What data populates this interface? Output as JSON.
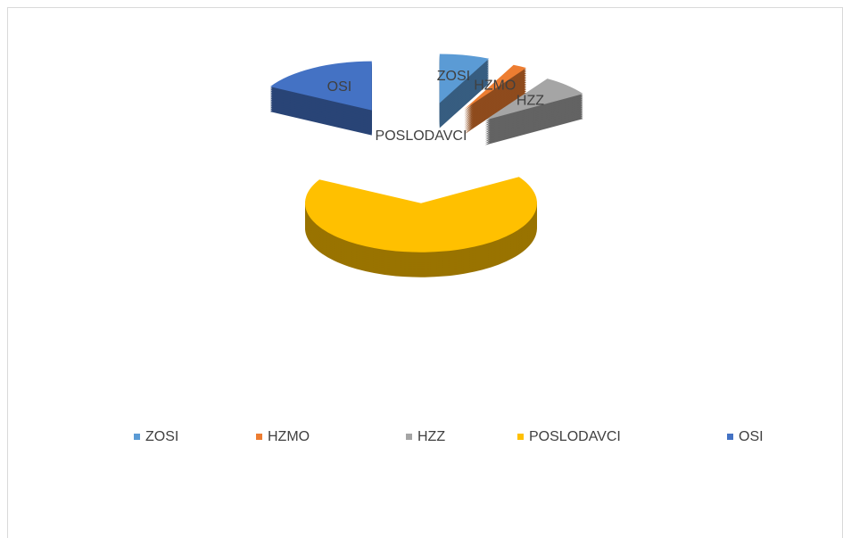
{
  "chart_data": {
    "type": "pie3d",
    "categories": [
      "ZOSI",
      "HZMO",
      "HZZ",
      "POSLODAVCI",
      "OSI"
    ],
    "values": [
      7,
      2,
      7,
      67,
      17
    ],
    "colors": [
      "#5b9bd5",
      "#ed7d31",
      "#a5a5a5",
      "#ffc000",
      "#4472c4"
    ],
    "legend": "bottom"
  }
}
